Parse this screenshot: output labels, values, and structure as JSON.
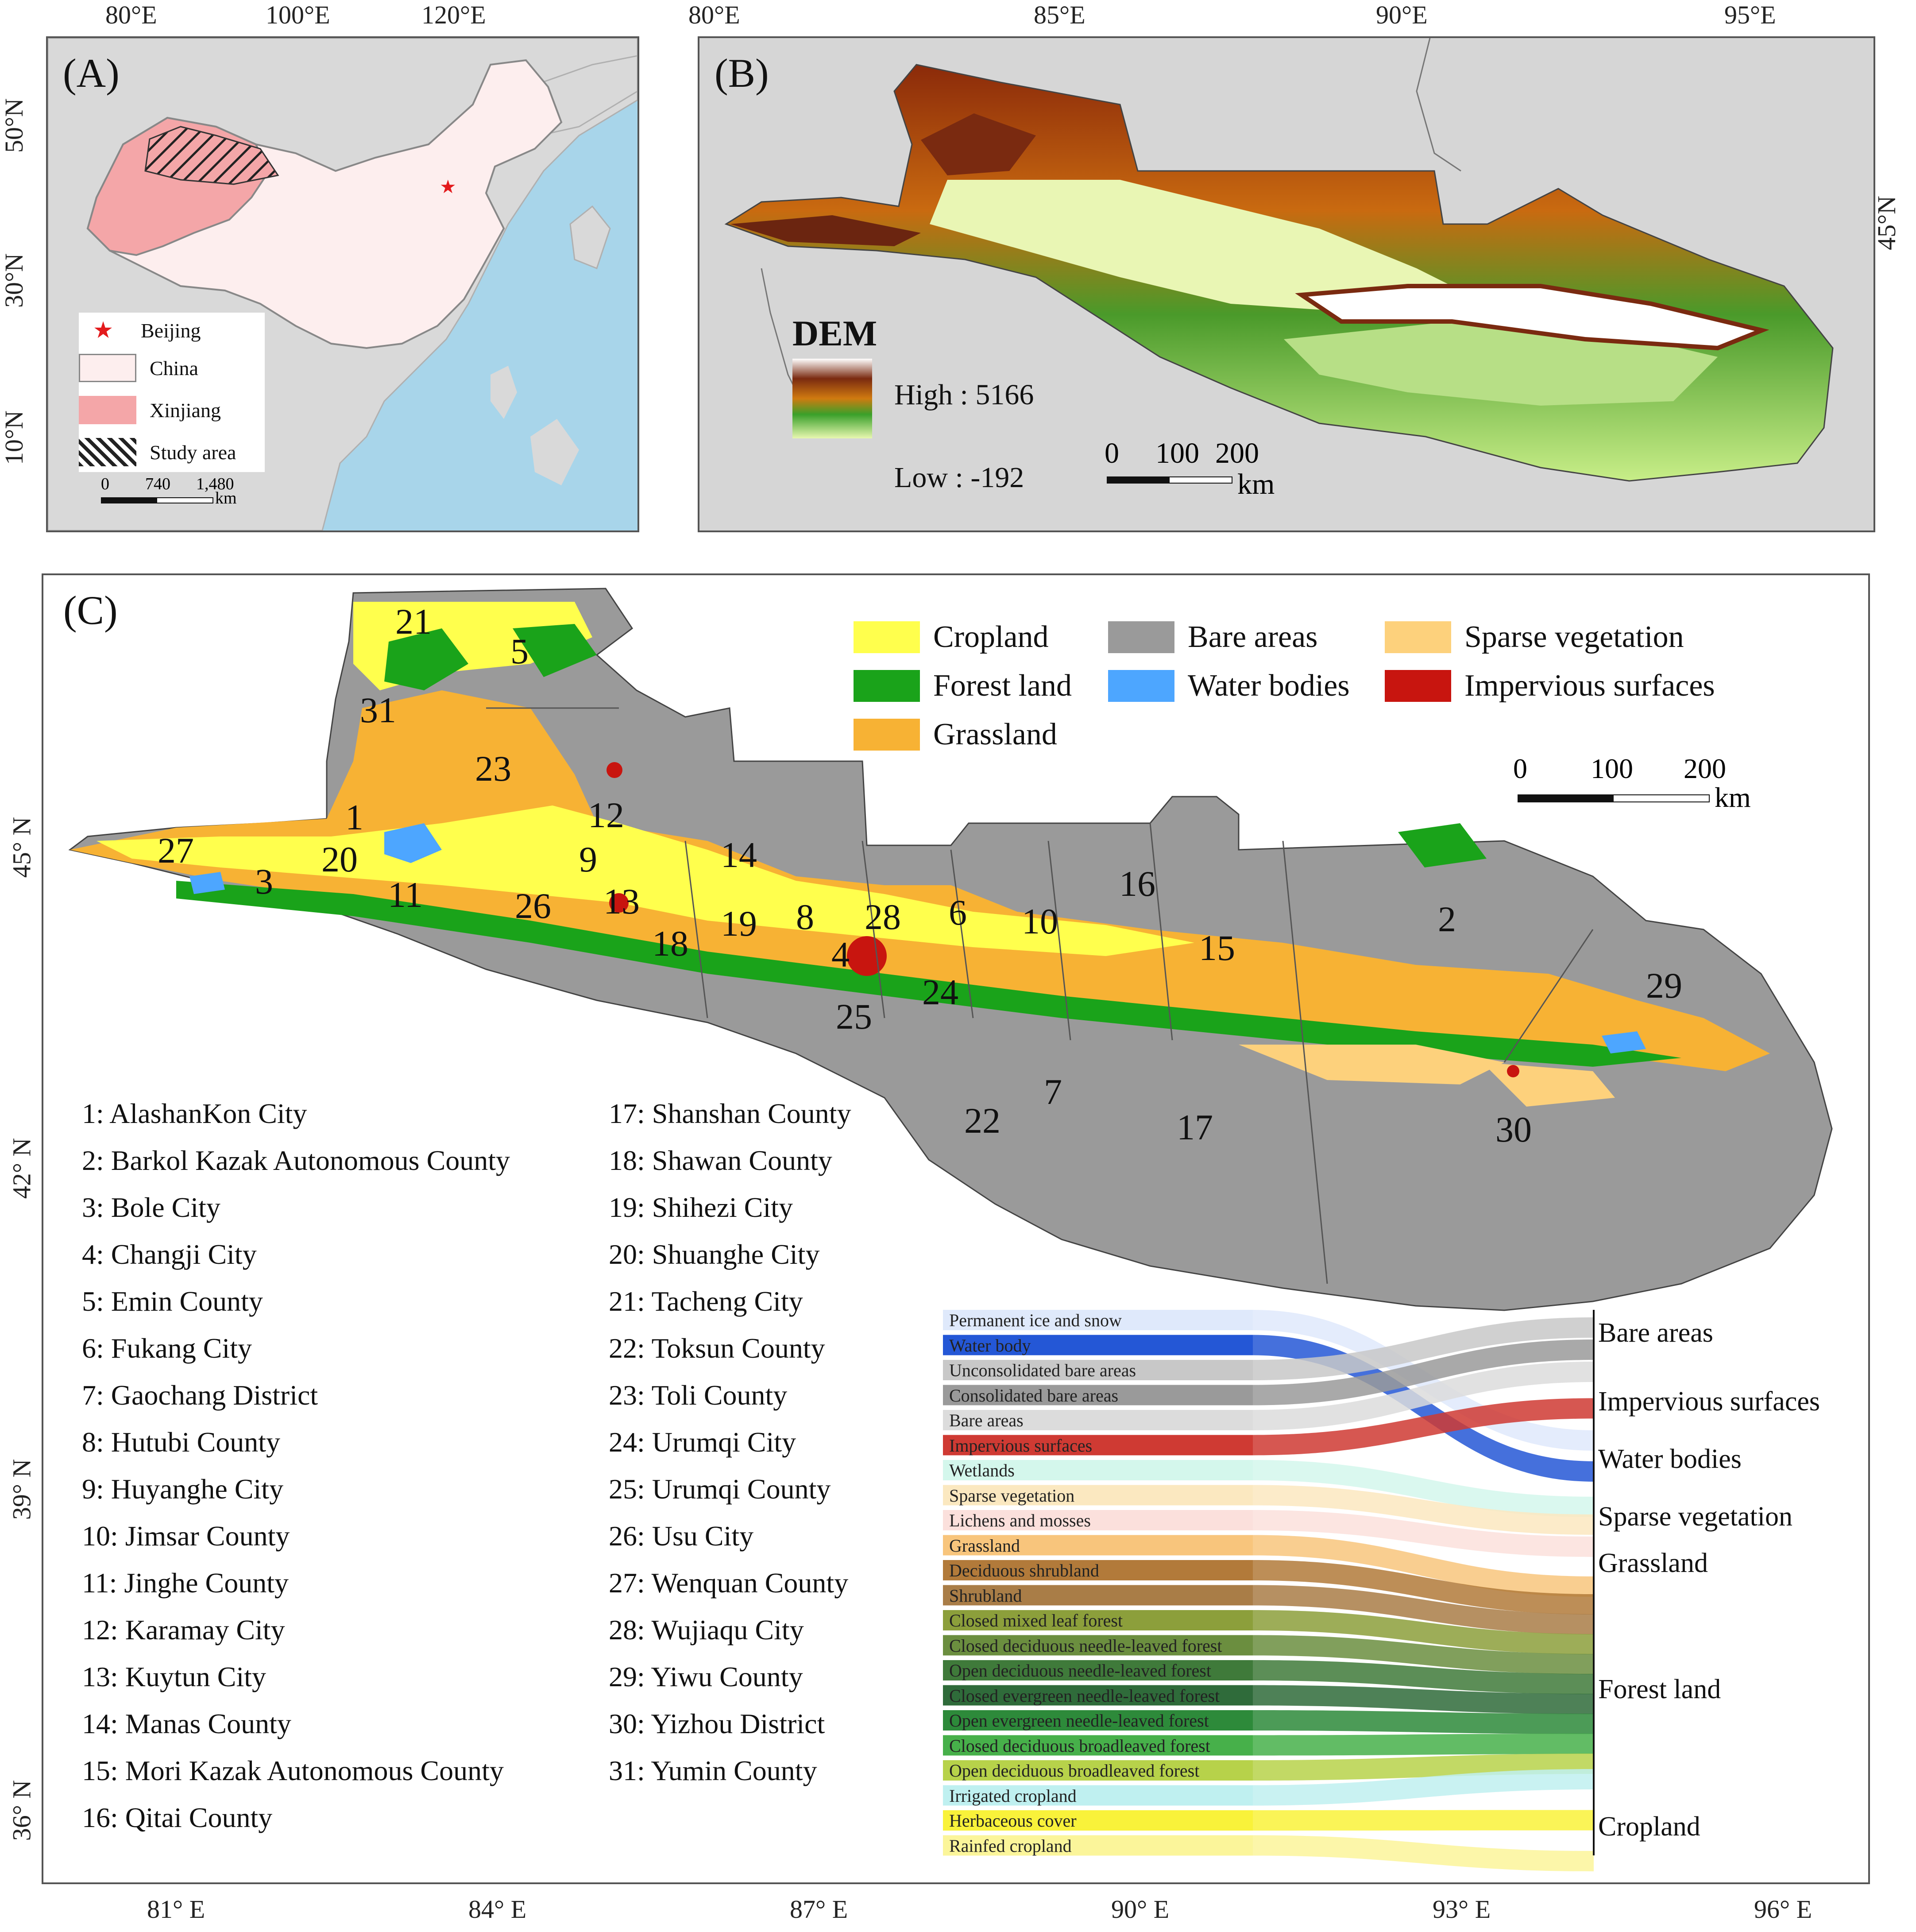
{
  "panel_a": {
    "label": "(A)",
    "lon_ticks": [
      "80°E",
      "100°E",
      "120°E"
    ],
    "lat_ticks": [
      "50°N",
      "30°N",
      "10°N"
    ],
    "legend": [
      {
        "label": "Beijing",
        "symbol": "star",
        "color": "#e31a1c"
      },
      {
        "label": "China",
        "color": "#fdeeee"
      },
      {
        "label": "Xinjiang",
        "color": "#f4a6a8"
      },
      {
        "label": "Study area",
        "pattern": "hatch"
      }
    ],
    "scalebar": {
      "ticks": [
        "0",
        "740",
        "1,480"
      ],
      "unit": "km"
    },
    "colors": {
      "ocean": "#a8d5ea",
      "land": "#d9d9d9",
      "china": "#fdeeee",
      "xinjiang": "#f4a6a8"
    }
  },
  "panel_b": {
    "label": "(B)",
    "lon_ticks": [
      "80°E",
      "85°E",
      "90°E",
      "95°E"
    ],
    "lat_tick": "45°N",
    "legend_title": "DEM",
    "high_label": "High : 5166",
    "low_label": "Low : -192",
    "scalebar": {
      "ticks": [
        "0",
        "100",
        "200"
      ],
      "unit": "km"
    }
  },
  "panel_c": {
    "label": "(C)",
    "lon_ticks": [
      "81° E",
      "84° E",
      "87° E",
      "90° E",
      "93° E",
      "96° E"
    ],
    "lat_ticks": [
      "45° N",
      "42° N",
      "39° N",
      "36° N"
    ],
    "classes": [
      {
        "label": "Cropland",
        "color": "#ffff4d"
      },
      {
        "label": "Forest land",
        "color": "#1aa31a"
      },
      {
        "label": "Grassland",
        "color": "#f7b234"
      },
      {
        "label": "Bare areas",
        "color": "#9a9a9a"
      },
      {
        "label": "Water bodies",
        "color": "#4da6ff"
      },
      {
        "label": "Sparse vegetation",
        "color": "#fdd17c"
      },
      {
        "label": "Impervious surfaces",
        "color": "#c8150f"
      }
    ],
    "scalebar": {
      "ticks": [
        "0",
        "100",
        "200"
      ],
      "unit": "km"
    },
    "map_numbers": [
      "21",
      "5",
      "31",
      "23",
      "1",
      "12",
      "27",
      "20",
      "3",
      "11",
      "9",
      "26",
      "13",
      "14",
      "18",
      "19",
      "8",
      "28",
      "6",
      "10",
      "16",
      "15",
      "2",
      "29",
      "4",
      "24",
      "25",
      "7",
      "22",
      "17",
      "30"
    ],
    "counties_left": [
      "1: AlashanKon  City",
      "2: Barkol Kazak Autonomous County",
      "3: Bole City",
      "4: Changji  City",
      "5: Emin  County",
      "6: Fukang City",
      "7: Gaochang District",
      "8: Hutubi County",
      "9: Huyanghe  City",
      "10: Jimsar County",
      "11: Jinghe County",
      "12: Karamay City",
      "13: Kuytun City",
      "14: Manas County",
      "15: Mori Kazak Autonomous County",
      "16: Qitai County"
    ],
    "counties_right": [
      "17: Shanshan County",
      "18: Shawan County",
      "19: Shihezi  City",
      "20: Shuanghe City",
      "21: Tacheng City",
      "22: Toksun County",
      "23: Toli County",
      "24: Urumqi City",
      "25: Urumqi County",
      "26: Usu City",
      "27: Wenquan County",
      "28: Wujiaqu City",
      "29: Yiwu County",
      "30: Yizhou District",
      "31: Yumin County"
    ],
    "sankey_sources": [
      {
        "label": "Permanent ice and snow",
        "color": "#dfe9fb"
      },
      {
        "label": "Water body",
        "color": "#2457d6"
      },
      {
        "label": "Unconsolidated bare areas",
        "color": "#c8c8c8"
      },
      {
        "label": "Consolidated bare areas",
        "color": "#9a9a9a"
      },
      {
        "label": "Bare areas",
        "color": "#dcdcdc"
      },
      {
        "label": "Impervious surfaces",
        "color": "#cf3a33"
      },
      {
        "label": "Wetlands",
        "color": "#d4f7ec"
      },
      {
        "label": "Sparse vegetation",
        "color": "#fbe8c0"
      },
      {
        "label": "Lichens and mosses",
        "color": "#fbe0dc"
      },
      {
        "label": "Grassland",
        "color": "#f8c57c"
      },
      {
        "label": "Deciduous shrubland",
        "color": "#b27a3a"
      },
      {
        "label": "Shrubland",
        "color": "#a97d47"
      },
      {
        "label": "Closed mixed leaf forest",
        "color": "#8c9f3b"
      },
      {
        "label": "Closed deciduous needle-leaved forest",
        "color": "#6b8e3f"
      },
      {
        "label": "Open deciduous needle-leaved forest",
        "color": "#3f7a3a"
      },
      {
        "label": "Closed evergreen needle-leaved forest",
        "color": "#2f6b3a"
      },
      {
        "label": "Open evergreen needle-leaved forest",
        "color": "#2d8a3a"
      },
      {
        "label": "Closed deciduous broadleaved forest",
        "color": "#47b04a"
      },
      {
        "label": "Open deciduous broadleaved forest",
        "color": "#b7d24a"
      },
      {
        "label": "Irrigated cropland",
        "color": "#bff0f0"
      },
      {
        "label": "Herbaceous cover",
        "color": "#f9f23a"
      },
      {
        "label": "Rainfed cropland",
        "color": "#fbf59a"
      }
    ],
    "sankey_targets": [
      "Bare areas",
      "Impervious surfaces",
      "Water bodies",
      "Sparse vegetation",
      "Grassland",
      "Forest land",
      "Cropland"
    ]
  }
}
